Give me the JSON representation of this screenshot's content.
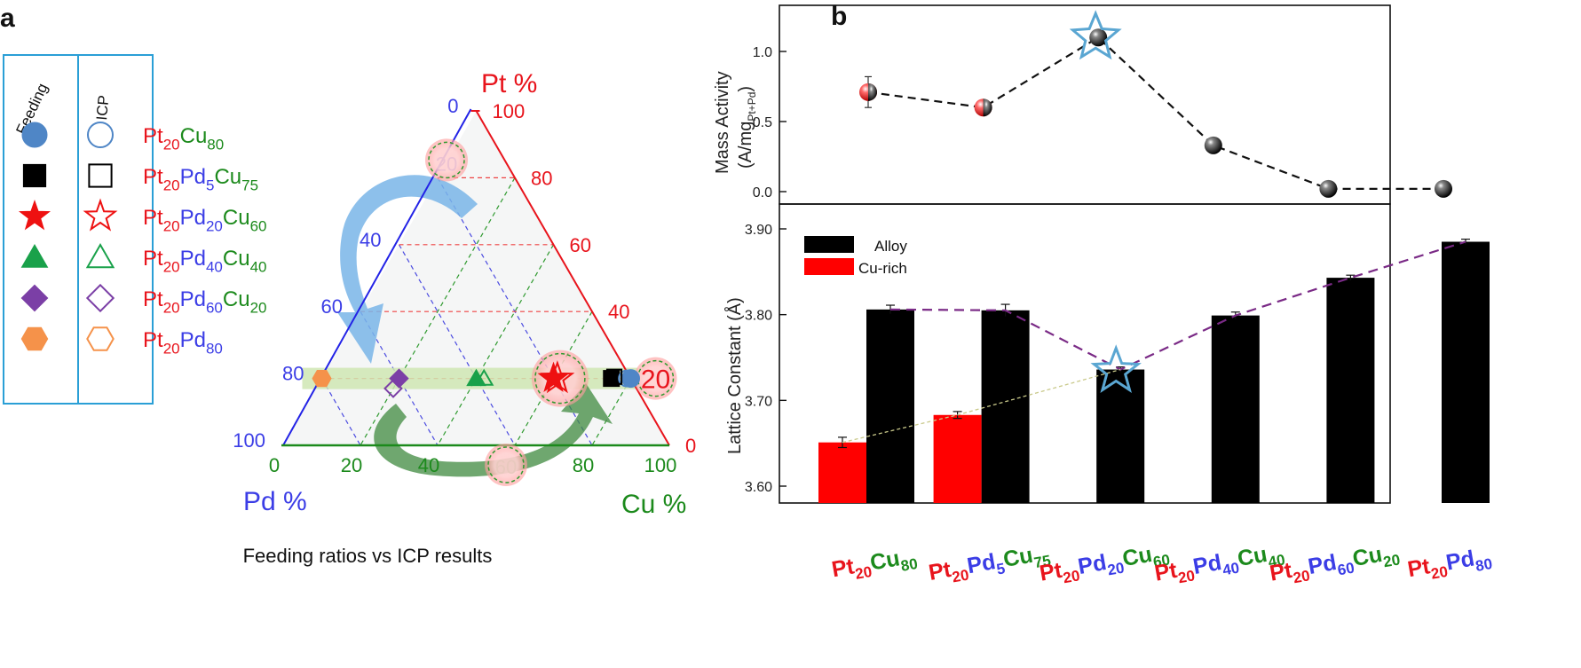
{
  "panel_labels": {
    "a": "a",
    "b": "b"
  },
  "colors": {
    "pt": "#e8141c",
    "pd": "#3b3de6",
    "cu": "#1c8a1c",
    "accent_star": "#5aa6d2",
    "highlight_band": "#cfe6b3",
    "guide_line": "#7a2a86"
  },
  "chart_data": [
    {
      "type": "scatter",
      "subtype": "ternary",
      "title": "Feeding ratios vs ICP results",
      "axes": {
        "pt": "Pt %",
        "pd": "Pd %",
        "cu": "Cu %"
      },
      "pt_ticks": [
        "0",
        "20",
        "40",
        "60",
        "80",
        "100"
      ],
      "pd_ticks": [
        "0",
        "20",
        "40",
        "60",
        "80",
        "100"
      ],
      "cu_ticks": [
        "0",
        "20",
        "40",
        "60",
        "80",
        "100"
      ],
      "legend": {
        "col_feeding": "Feeding",
        "col_icp": "ICP",
        "rows": [
          {
            "parts": [
              [
                "Pt",
                "pt"
              ],
              [
                "20",
                "pt-sub"
              ],
              [
                "Cu",
                "cu"
              ],
              [
                "80",
                "cu-sub"
              ]
            ],
            "color": "#4f86c6",
            "shape": "circle"
          },
          {
            "parts": [
              [
                "Pt",
                "pt"
              ],
              [
                "20",
                "pt-sub"
              ],
              [
                "Pd",
                "pd"
              ],
              [
                "5",
                "pd-sub"
              ],
              [
                "Cu",
                "cu"
              ],
              [
                "75",
                "cu-sub"
              ]
            ],
            "color": "#000000",
            "shape": "square"
          },
          {
            "parts": [
              [
                "Pt",
                "pt"
              ],
              [
                "20",
                "pt-sub"
              ],
              [
                "Pd",
                "pd"
              ],
              [
                "20",
                "pd-sub"
              ],
              [
                "Cu",
                "cu"
              ],
              [
                "60",
                "cu-sub"
              ]
            ],
            "color": "#ee1111",
            "shape": "star"
          },
          {
            "parts": [
              [
                "Pt",
                "pt"
              ],
              [
                "20",
                "pt-sub"
              ],
              [
                "Pd",
                "pd"
              ],
              [
                "40",
                "pd-sub"
              ],
              [
                "Cu",
                "cu"
              ],
              [
                "40",
                "cu-sub"
              ]
            ],
            "color": "#19a14a",
            "shape": "triangle"
          },
          {
            "parts": [
              [
                "Pt",
                "pt"
              ],
              [
                "20",
                "pt-sub"
              ],
              [
                "Pd",
                "pd"
              ],
              [
                "60",
                "pd-sub"
              ],
              [
                "Cu",
                "cu"
              ],
              [
                "20",
                "cu-sub"
              ]
            ],
            "color": "#7b3fa6",
            "shape": "diamond"
          },
          {
            "parts": [
              [
                "Pt",
                "pt"
              ],
              [
                "20",
                "pt-sub"
              ],
              [
                "Pd",
                "pd"
              ],
              [
                "80",
                "pd-sub"
              ]
            ],
            "color": "#f5924a",
            "shape": "hexagon"
          }
        ]
      },
      "feeding_points": [
        {
          "pt": 20,
          "pd": 0,
          "cu": 80,
          "shape": "circle",
          "color": "#4f86c6"
        },
        {
          "pt": 20,
          "pd": 5,
          "cu": 75,
          "shape": "square",
          "color": "#000000"
        },
        {
          "pt": 20,
          "pd": 20,
          "cu": 60,
          "shape": "star",
          "color": "#ee1111"
        },
        {
          "pt": 20,
          "pd": 40,
          "cu": 40,
          "shape": "triangle",
          "color": "#19a14a"
        },
        {
          "pt": 20,
          "pd": 60,
          "cu": 20,
          "shape": "diamond",
          "color": "#7b3fa6"
        },
        {
          "pt": 20,
          "pd": 80,
          "cu": 0,
          "shape": "hexagon",
          "color": "#f5924a"
        }
      ],
      "icp_points": [
        {
          "pt": 20,
          "pd": 1,
          "cu": 79,
          "shape": "circle",
          "color": "#4f86c6"
        },
        {
          "pt": 20.5,
          "pd": 4,
          "cu": 75.5,
          "shape": "square",
          "color": "#000000"
        },
        {
          "pt": 20,
          "pd": 19,
          "cu": 61,
          "shape": "star",
          "color": "#ee1111"
        },
        {
          "pt": 20,
          "pd": 38,
          "cu": 42,
          "shape": "triangle",
          "color": "#19a14a"
        },
        {
          "pt": 17,
          "pd": 63,
          "cu": 20,
          "shape": "diamond",
          "color": "#7b3fa6"
        }
      ],
      "highlighted_values": {
        "pt": "20",
        "pd": "20",
        "cu": "60"
      }
    },
    {
      "type": "line",
      "ylabel": "Mass Activity",
      "ylabel_unit": {
        "base": "(A/mg",
        "sub": "Pt+Pd",
        "close": ")"
      },
      "ylim": [
        -0.05,
        1.3
      ],
      "yticks": [
        "0.0",
        "0.5",
        "1.0"
      ],
      "categories": [
        "Pt20Cu80",
        "Pt20Pd5Cu75",
        "Pt20Pd20Cu60",
        "Pt20Pd40Cu40",
        "Pt20Pd60Cu20",
        "Pt20Pd80"
      ],
      "values": [
        0.71,
        0.6,
        1.1,
        0.33,
        0.02,
        0.02
      ],
      "errors": [
        0.11,
        0.05,
        0.03,
        0.0,
        0.0,
        0.0
      ],
      "highlight_index": 2
    },
    {
      "type": "bar",
      "ylabel": "Lattice Constant (Å)",
      "ylim": [
        3.58,
        3.93
      ],
      "yticks": [
        "3.60",
        "3.70",
        "3.80",
        "3.90"
      ],
      "categories": [
        "Pt20Cu80",
        "Pt20Pd5Cu75",
        "Pt20Pd20Cu60",
        "Pt20Pd40Cu40",
        "Pt20Pd60Cu20",
        "Pt20Pd80"
      ],
      "series": [
        {
          "name": "Alloy",
          "color": "#000000",
          "values": [
            3.806,
            3.805,
            3.736,
            3.799,
            3.843,
            3.885
          ],
          "errors": [
            0.005,
            0.007,
            0.003,
            0.004,
            0.003,
            0.003
          ]
        },
        {
          "name": "Cu-rich",
          "color": "#ff0000",
          "values": [
            3.651,
            3.683,
            null,
            null,
            null,
            null
          ],
          "errors": [
            0.006,
            0.004,
            null,
            null,
            null,
            null
          ]
        }
      ],
      "highlight_index": 2
    }
  ],
  "x_category_labels": [
    [
      [
        "Pt",
        "pt"
      ],
      [
        "20",
        "pt-sub"
      ],
      [
        "Cu",
        "cu"
      ],
      [
        "80",
        "cu-sub"
      ]
    ],
    [
      [
        "Pt",
        "pt"
      ],
      [
        "20",
        "pt-sub"
      ],
      [
        "Pd",
        "pd"
      ],
      [
        "5",
        "pd-sub"
      ],
      [
        "Cu",
        "cu"
      ],
      [
        "75",
        "cu-sub"
      ]
    ],
    [
      [
        "Pt",
        "pt"
      ],
      [
        "20",
        "pt-sub"
      ],
      [
        "Pd",
        "pd"
      ],
      [
        "20",
        "pd-sub"
      ],
      [
        "Cu",
        "cu"
      ],
      [
        "60",
        "cu-sub"
      ]
    ],
    [
      [
        "Pt",
        "pt"
      ],
      [
        "20",
        "pt-sub"
      ],
      [
        "Pd",
        "pd"
      ],
      [
        "40",
        "pd-sub"
      ],
      [
        "Cu",
        "cu"
      ],
      [
        "40",
        "cu-sub"
      ]
    ],
    [
      [
        "Pt",
        "pt"
      ],
      [
        "20",
        "pt-sub"
      ],
      [
        "Pd",
        "pd"
      ],
      [
        "60",
        "pd-sub"
      ],
      [
        "Cu",
        "cu"
      ],
      [
        "20",
        "cu-sub"
      ]
    ],
    [
      [
        "Pt",
        "pt"
      ],
      [
        "20",
        "pt-sub"
      ],
      [
        "Pd",
        "pd"
      ],
      [
        "80",
        "pd-sub"
      ]
    ]
  ]
}
